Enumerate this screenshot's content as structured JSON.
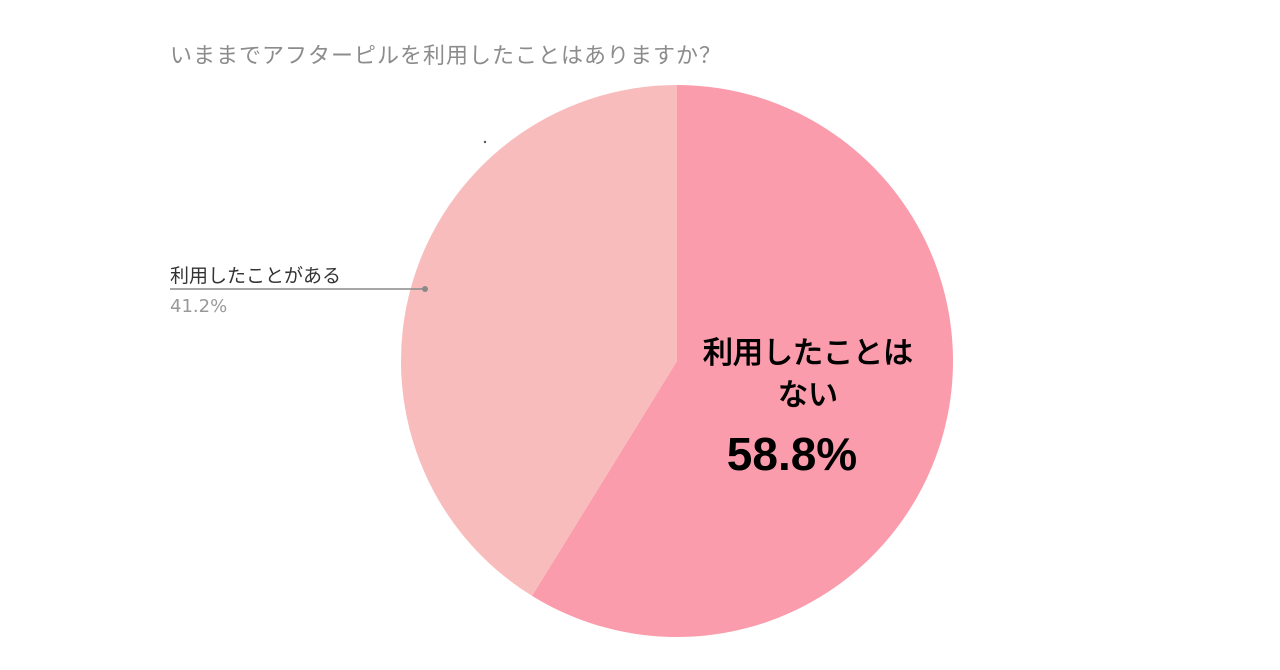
{
  "chart_data": {
    "type": "pie",
    "title": "いままでアフターピルを利用したことはありますか？",
    "slices": [
      {
        "label": "利用したことはない",
        "value": 58.8,
        "label_text": "58.8%",
        "color": "#fa9cab"
      },
      {
        "label": "利用したことがある",
        "value": 41.2,
        "label_text": "41.2%",
        "color": "#f9bcbc"
      }
    ],
    "start_angle_deg": 0,
    "direction": "clockwise"
  }
}
